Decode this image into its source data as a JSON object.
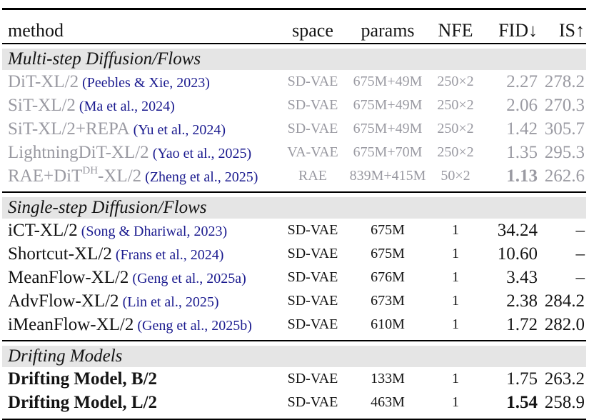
{
  "colors": {
    "body_text": "#141414",
    "muted_text": "#9a9aa2",
    "citation_navy": "#1b1b8f",
    "section_band_gray": "#e5e5e5",
    "rule_black": "#000000"
  },
  "table": {
    "columns": [
      {
        "key": "method",
        "label": "method"
      },
      {
        "key": "space",
        "label": "space"
      },
      {
        "key": "params",
        "label": "params"
      },
      {
        "key": "nfe",
        "label": "NFE"
      },
      {
        "key": "fid",
        "label": "FID↓"
      },
      {
        "key": "is",
        "label": "IS↑"
      }
    ],
    "sections": [
      {
        "title": "Multi-step Diffusion/Flows",
        "muted": true,
        "rows": [
          {
            "method": "DiT-XL/2",
            "citation": "(Peebles & Xie, 2023)",
            "space": "SD-VAE",
            "params": "675M+49M",
            "nfe": "250×2",
            "fid": "2.27",
            "is": "278.2"
          },
          {
            "method": "SiT-XL/2",
            "citation": "(Ma et al., 2024)",
            "space": "SD-VAE",
            "params": "675M+49M",
            "nfe": "250×2",
            "fid": "2.06",
            "is": "270.3"
          },
          {
            "method": "SiT-XL/2+REPA",
            "citation": "(Yu et al., 2024)",
            "space": "SD-VAE",
            "params": "675M+49M",
            "nfe": "250×2",
            "fid": "1.42",
            "is": "305.7"
          },
          {
            "method": "LightningDiT-XL/2",
            "citation": "(Yao et al., 2025)",
            "space": "VA-VAE",
            "params": "675M+70M",
            "nfe": "250×2",
            "fid": "1.35",
            "is": "295.3"
          },
          {
            "method_pre": "RAE+DiT",
            "method_sup": "DH",
            "method_post": "-XL/2",
            "citation": "(Zheng et al., 2025)",
            "space": "RAE",
            "params": "839M+415M",
            "nfe": "50×2",
            "fid": "1.13",
            "fid_bold": true,
            "is": "262.6"
          }
        ]
      },
      {
        "title": "Single-step Diffusion/Flows",
        "muted": false,
        "rows": [
          {
            "method": "iCT-XL/2",
            "citation": "(Song & Dhariwal, 2023)",
            "space": "SD-VAE",
            "params": "675M",
            "nfe": "1",
            "fid": "34.24",
            "is": "–"
          },
          {
            "method": "Shortcut-XL/2",
            "citation": "(Frans et al., 2024)",
            "space": "SD-VAE",
            "params": "675M",
            "nfe": "1",
            "fid": "10.60",
            "is": "–"
          },
          {
            "method": "MeanFlow-XL/2",
            "citation": "(Geng et al., 2025a)",
            "space": "SD-VAE",
            "params": "676M",
            "nfe": "1",
            "fid": "3.43",
            "is": "–"
          },
          {
            "method": "AdvFlow-XL/2",
            "citation": "(Lin et al., 2025)",
            "space": "SD-VAE",
            "params": "673M",
            "nfe": "1",
            "fid": "2.38",
            "is": "284.2"
          },
          {
            "method": "iMeanFlow-XL/2",
            "citation": "(Geng et al., 2025b)",
            "space": "SD-VAE",
            "params": "610M",
            "nfe": "1",
            "fid": "1.72",
            "is": "282.0"
          }
        ]
      },
      {
        "title": "Drifting Models",
        "muted": false,
        "rows": [
          {
            "method": "Drifting Model, B/2",
            "method_bold": true,
            "space": "SD-VAE",
            "params": "133M",
            "nfe": "1",
            "fid": "1.75",
            "is": "263.2"
          },
          {
            "method": "Drifting Model, L/2",
            "method_bold": true,
            "space": "SD-VAE",
            "params": "463M",
            "nfe": "1",
            "fid": "1.54",
            "fid_bold": true,
            "is": "258.9"
          }
        ]
      }
    ]
  }
}
